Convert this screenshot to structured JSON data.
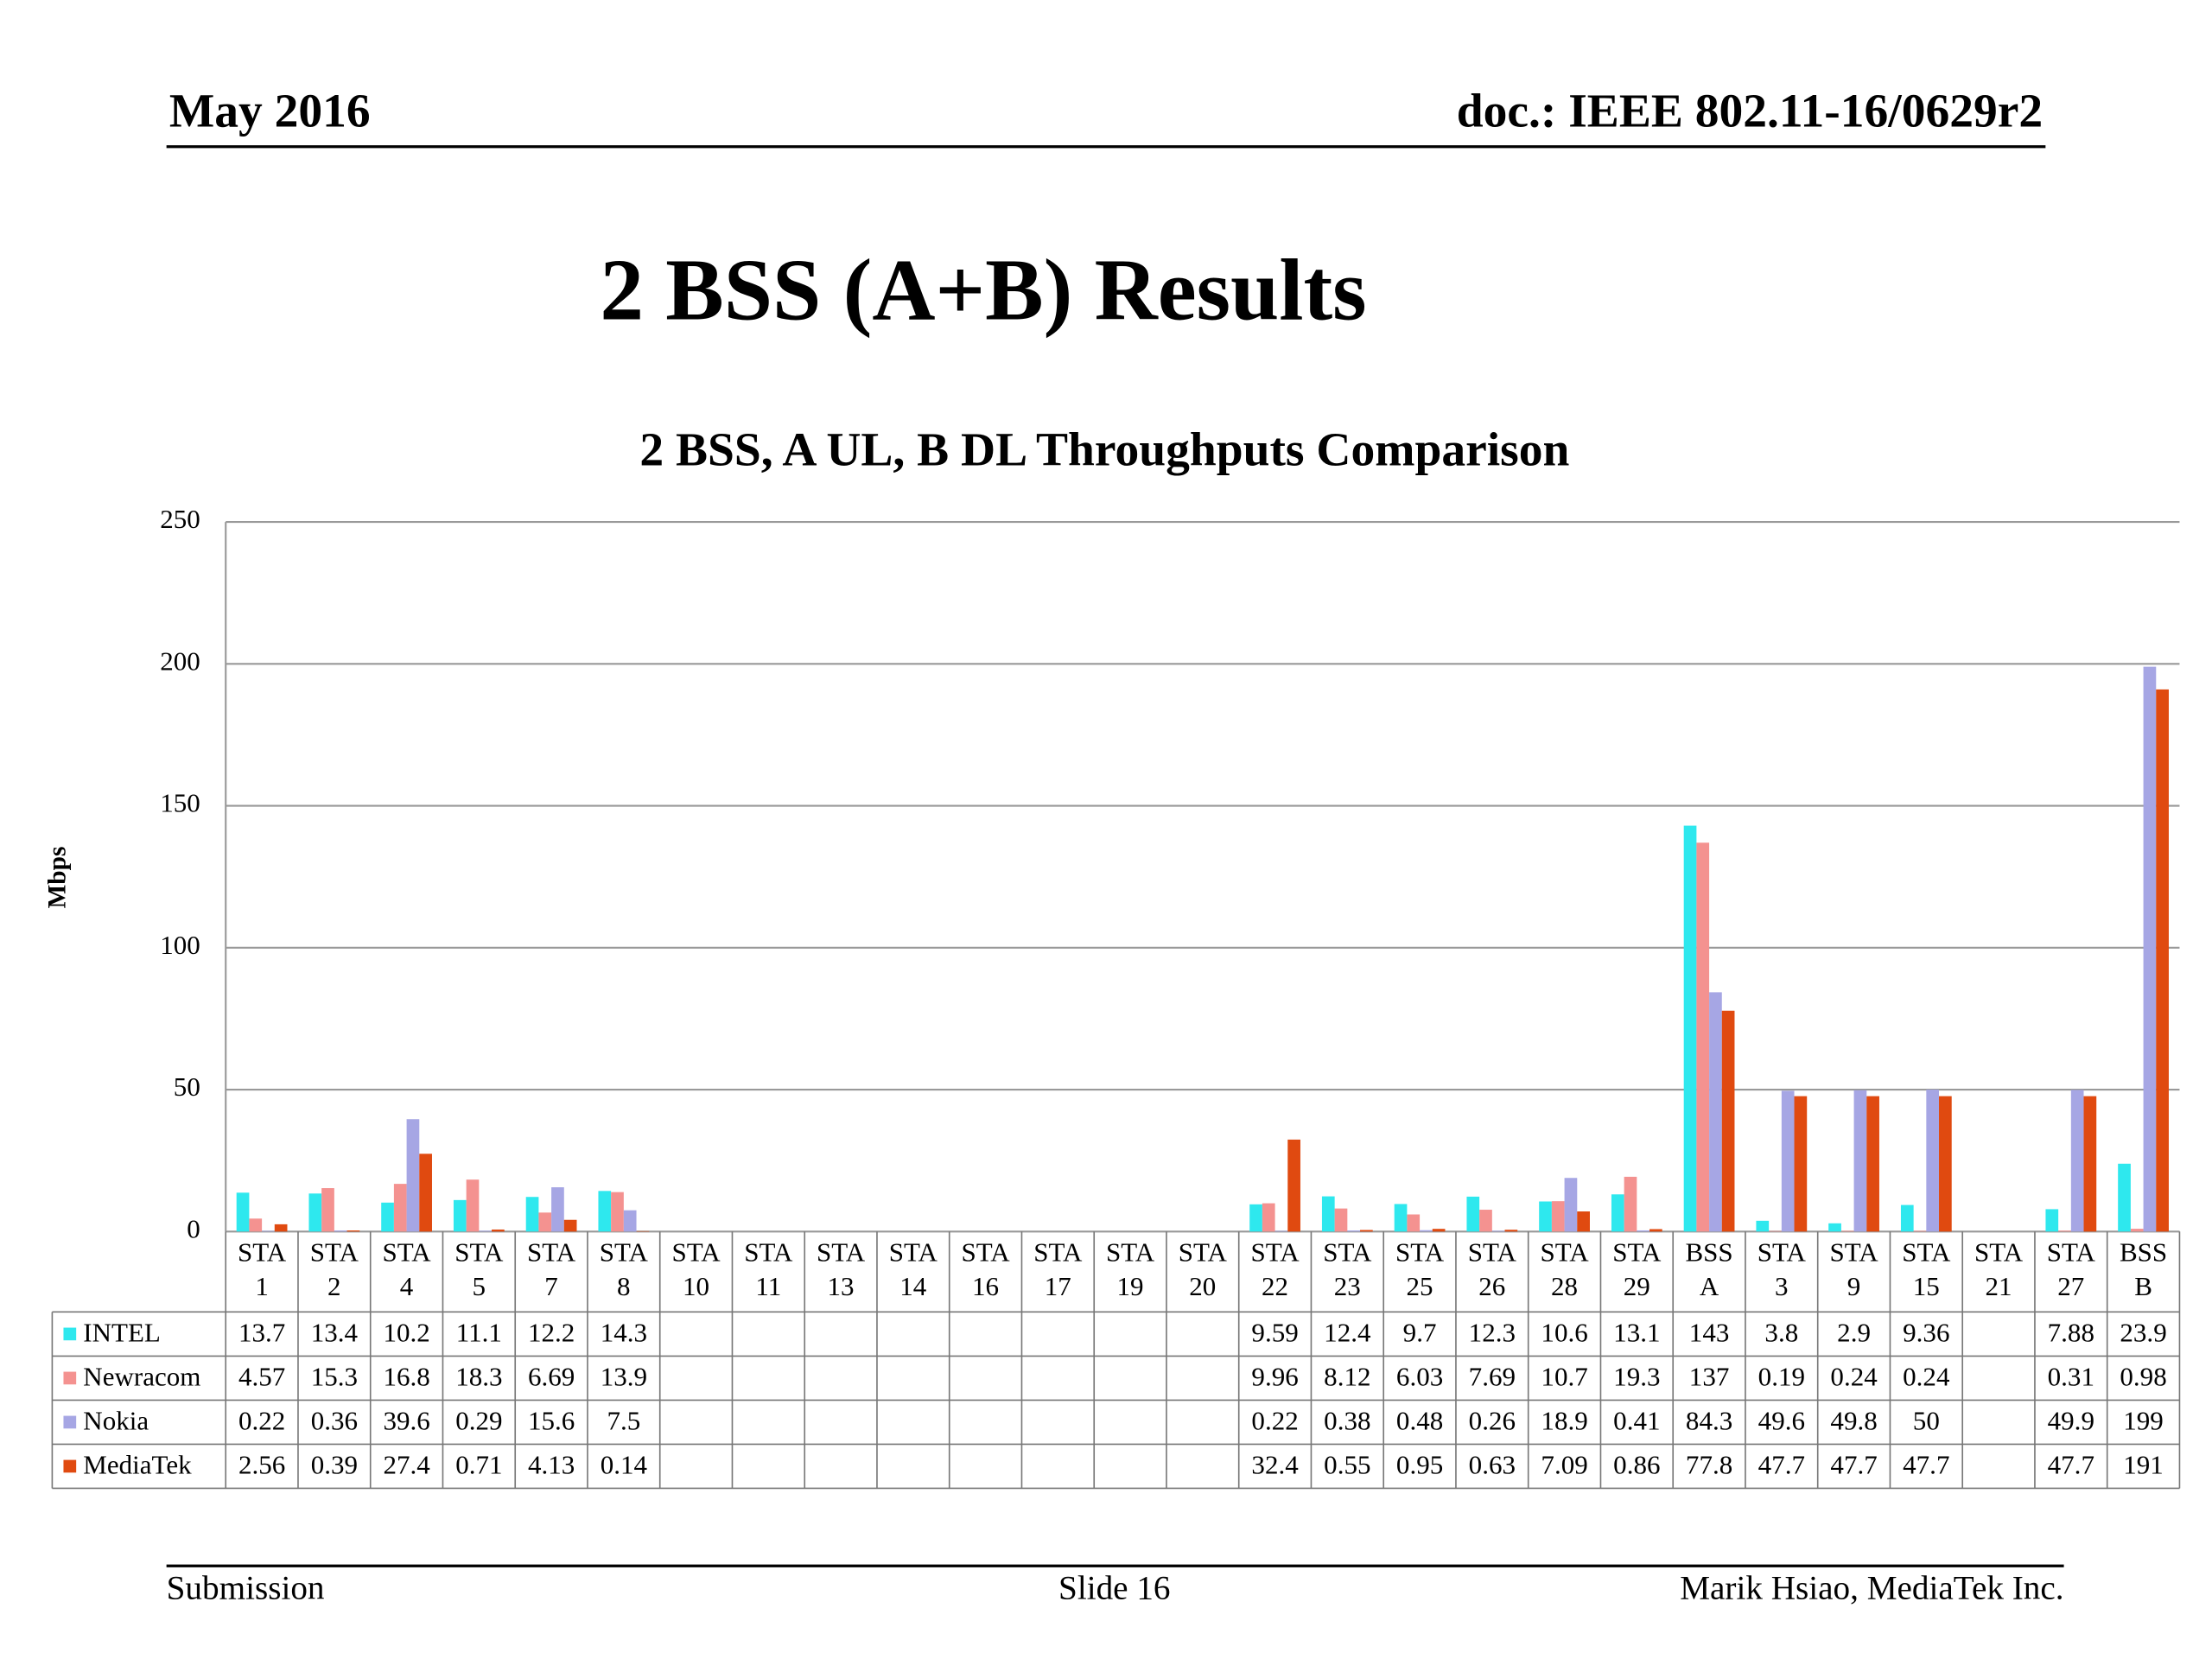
{
  "header": {
    "date": "May 2016",
    "doc": "doc.: IEEE 802.11-16/0629r2"
  },
  "title": "2 BSS (A+B) Results",
  "chart_data": {
    "type": "bar",
    "title": "2 BSS, A UL, B DL Throughputs Comparison",
    "y_label": "Mbps",
    "categories": [
      "STA 1",
      "STA 2",
      "STA 4",
      "STA 5",
      "STA 7",
      "STA 8",
      "STA 10",
      "STA 11",
      "STA 13",
      "STA 14",
      "STA 16",
      "STA 17",
      "STA 19",
      "STA 20",
      "STA 22",
      "STA 23",
      "STA 25",
      "STA 26",
      "STA 28",
      "STA 29",
      "BSS A",
      "STA 3",
      "STA 9",
      "STA 15",
      "STA 21",
      "STA 27",
      "BSS B"
    ],
    "series": [
      {
        "name": "INTEL",
        "color": "#2ee8ee",
        "values": [
          13.7,
          13.4,
          10.2,
          11.1,
          12.2,
          14.3,
          null,
          null,
          null,
          null,
          null,
          null,
          null,
          null,
          9.59,
          12.4,
          9.7,
          12.3,
          10.6,
          13.1,
          143,
          3.8,
          2.9,
          9.36,
          null,
          7.88,
          23.9
        ]
      },
      {
        "name": "Newracom",
        "color": "#f49290",
        "values": [
          4.57,
          15.3,
          16.8,
          18.3,
          6.69,
          13.9,
          null,
          null,
          null,
          null,
          null,
          null,
          null,
          null,
          9.96,
          8.12,
          6.03,
          7.69,
          10.7,
          19.3,
          137,
          0.19,
          0.24,
          0.24,
          null,
          0.31,
          0.98
        ]
      },
      {
        "name": "Nokia",
        "color": "#a6a6e4",
        "values": [
          0.22,
          0.36,
          39.6,
          0.29,
          15.6,
          7.5,
          null,
          null,
          null,
          null,
          null,
          null,
          null,
          null,
          0.22,
          0.38,
          0.48,
          0.26,
          18.9,
          0.41,
          84.3,
          49.6,
          49.8,
          50,
          null,
          49.9,
          199
        ]
      },
      {
        "name": "MediaTek",
        "color": "#e04a10",
        "values": [
          2.56,
          0.39,
          27.4,
          0.71,
          4.13,
          0.14,
          null,
          null,
          null,
          null,
          null,
          null,
          null,
          null,
          32.4,
          0.55,
          0.95,
          0.63,
          7.09,
          0.86,
          77.8,
          47.7,
          47.7,
          47.7,
          null,
          47.7,
          191
        ]
      }
    ],
    "ylim": [
      0,
      250
    ],
    "yticks": [
      0,
      50,
      100,
      150,
      200,
      250
    ],
    "grid": true
  },
  "footer": {
    "left": "Submission",
    "center": "Slide 16",
    "right": "Marik Hsiao, MediaTek Inc."
  }
}
